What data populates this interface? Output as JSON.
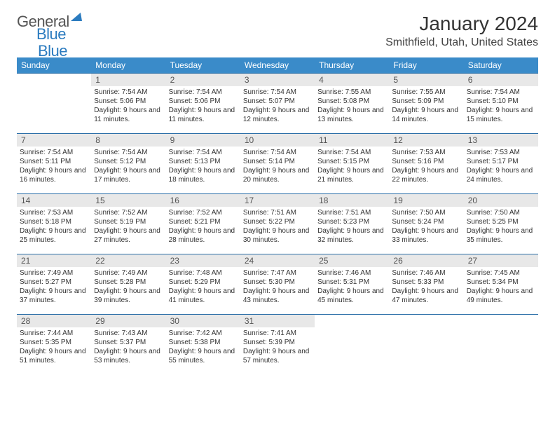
{
  "logo": {
    "text1": "General",
    "text2": "Blue"
  },
  "title": "January 2024",
  "location": "Smithfield, Utah, United States",
  "colors": {
    "header_bg": "#3a8bc9",
    "header_text": "#ffffff",
    "daynum_bg": "#e8e8e8",
    "daynum_text": "#555555",
    "row_border": "#2b6fa8",
    "body_text": "#333333",
    "page_bg": "#ffffff"
  },
  "weekdays": [
    "Sunday",
    "Monday",
    "Tuesday",
    "Wednesday",
    "Thursday",
    "Friday",
    "Saturday"
  ],
  "layout": {
    "first_weekday_index": 1,
    "days_in_month": 31
  },
  "days": {
    "1": {
      "sunrise": "7:54 AM",
      "sunset": "5:06 PM",
      "daylight": "9 hours and 11 minutes."
    },
    "2": {
      "sunrise": "7:54 AM",
      "sunset": "5:06 PM",
      "daylight": "9 hours and 11 minutes."
    },
    "3": {
      "sunrise": "7:54 AM",
      "sunset": "5:07 PM",
      "daylight": "9 hours and 12 minutes."
    },
    "4": {
      "sunrise": "7:55 AM",
      "sunset": "5:08 PM",
      "daylight": "9 hours and 13 minutes."
    },
    "5": {
      "sunrise": "7:55 AM",
      "sunset": "5:09 PM",
      "daylight": "9 hours and 14 minutes."
    },
    "6": {
      "sunrise": "7:54 AM",
      "sunset": "5:10 PM",
      "daylight": "9 hours and 15 minutes."
    },
    "7": {
      "sunrise": "7:54 AM",
      "sunset": "5:11 PM",
      "daylight": "9 hours and 16 minutes."
    },
    "8": {
      "sunrise": "7:54 AM",
      "sunset": "5:12 PM",
      "daylight": "9 hours and 17 minutes."
    },
    "9": {
      "sunrise": "7:54 AM",
      "sunset": "5:13 PM",
      "daylight": "9 hours and 18 minutes."
    },
    "10": {
      "sunrise": "7:54 AM",
      "sunset": "5:14 PM",
      "daylight": "9 hours and 20 minutes."
    },
    "11": {
      "sunrise": "7:54 AM",
      "sunset": "5:15 PM",
      "daylight": "9 hours and 21 minutes."
    },
    "12": {
      "sunrise": "7:53 AM",
      "sunset": "5:16 PM",
      "daylight": "9 hours and 22 minutes."
    },
    "13": {
      "sunrise": "7:53 AM",
      "sunset": "5:17 PM",
      "daylight": "9 hours and 24 minutes."
    },
    "14": {
      "sunrise": "7:53 AM",
      "sunset": "5:18 PM",
      "daylight": "9 hours and 25 minutes."
    },
    "15": {
      "sunrise": "7:52 AM",
      "sunset": "5:19 PM",
      "daylight": "9 hours and 27 minutes."
    },
    "16": {
      "sunrise": "7:52 AM",
      "sunset": "5:21 PM",
      "daylight": "9 hours and 28 minutes."
    },
    "17": {
      "sunrise": "7:51 AM",
      "sunset": "5:22 PM",
      "daylight": "9 hours and 30 minutes."
    },
    "18": {
      "sunrise": "7:51 AM",
      "sunset": "5:23 PM",
      "daylight": "9 hours and 32 minutes."
    },
    "19": {
      "sunrise": "7:50 AM",
      "sunset": "5:24 PM",
      "daylight": "9 hours and 33 minutes."
    },
    "20": {
      "sunrise": "7:50 AM",
      "sunset": "5:25 PM",
      "daylight": "9 hours and 35 minutes."
    },
    "21": {
      "sunrise": "7:49 AM",
      "sunset": "5:27 PM",
      "daylight": "9 hours and 37 minutes."
    },
    "22": {
      "sunrise": "7:49 AM",
      "sunset": "5:28 PM",
      "daylight": "9 hours and 39 minutes."
    },
    "23": {
      "sunrise": "7:48 AM",
      "sunset": "5:29 PM",
      "daylight": "9 hours and 41 minutes."
    },
    "24": {
      "sunrise": "7:47 AM",
      "sunset": "5:30 PM",
      "daylight": "9 hours and 43 minutes."
    },
    "25": {
      "sunrise": "7:46 AM",
      "sunset": "5:31 PM",
      "daylight": "9 hours and 45 minutes."
    },
    "26": {
      "sunrise": "7:46 AM",
      "sunset": "5:33 PM",
      "daylight": "9 hours and 47 minutes."
    },
    "27": {
      "sunrise": "7:45 AM",
      "sunset": "5:34 PM",
      "daylight": "9 hours and 49 minutes."
    },
    "28": {
      "sunrise": "7:44 AM",
      "sunset": "5:35 PM",
      "daylight": "9 hours and 51 minutes."
    },
    "29": {
      "sunrise": "7:43 AM",
      "sunset": "5:37 PM",
      "daylight": "9 hours and 53 minutes."
    },
    "30": {
      "sunrise": "7:42 AM",
      "sunset": "5:38 PM",
      "daylight": "9 hours and 55 minutes."
    },
    "31": {
      "sunrise": "7:41 AM",
      "sunset": "5:39 PM",
      "daylight": "9 hours and 57 minutes."
    }
  },
  "labels": {
    "sunrise": "Sunrise:",
    "sunset": "Sunset:",
    "daylight": "Daylight:"
  }
}
